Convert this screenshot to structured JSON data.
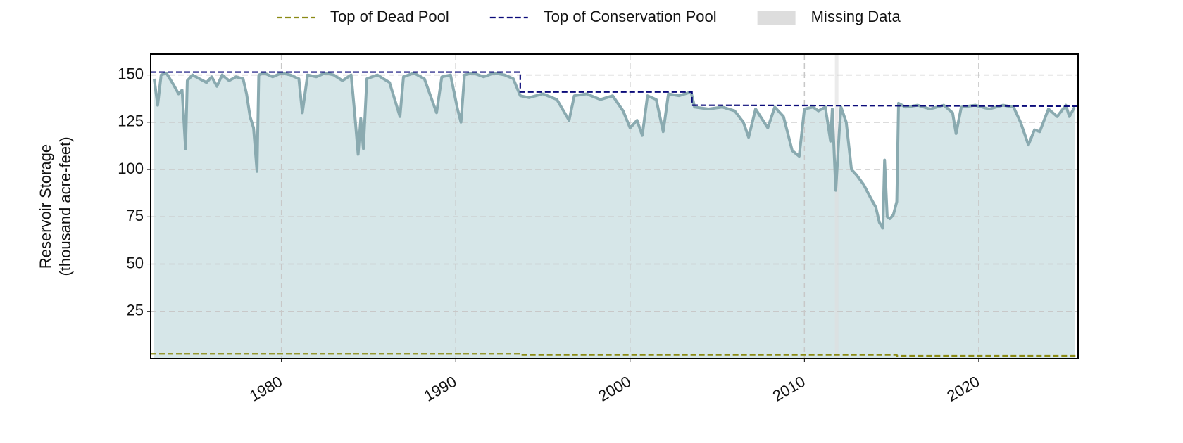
{
  "chart_data": {
    "type": "area-line",
    "y_label": [
      "Reservoir Storage",
      "(thousand acre-feet)"
    ],
    "xlim": [
      1972.5,
      2025.7
    ],
    "ylim": [
      0,
      161
    ],
    "xticks": [
      1980,
      1990,
      2000,
      2010,
      2020
    ],
    "yticks": [
      25,
      50,
      75,
      100,
      125,
      150
    ],
    "grid": true,
    "legend": "top",
    "storage": {
      "color": "#8aaab0",
      "fill": "#d6e6e8",
      "x": [
        1972.7,
        1972.9,
        1973.1,
        1973.4,
        1973.8,
        1974.1,
        1974.3,
        1974.5,
        1974.6,
        1974.9,
        1975.3,
        1975.7,
        1976.0,
        1976.3,
        1976.6,
        1977.0,
        1977.4,
        1977.8,
        1978.0,
        1978.2,
        1978.4,
        1978.6,
        1978.7,
        1979.0,
        1979.5,
        1980.0,
        1980.5,
        1981.0,
        1981.2,
        1981.5,
        1982.0,
        1982.5,
        1983.0,
        1983.5,
        1984.0,
        1984.2,
        1984.4,
        1984.55,
        1984.7,
        1984.9,
        1985.5,
        1986.2,
        1986.8,
        1987.0,
        1987.6,
        1988.2,
        1988.9,
        1989.2,
        1989.7,
        1990.1,
        1990.3,
        1990.5,
        1991.0,
        1991.6,
        1992.2,
        1992.8,
        1993.3,
        1993.7,
        1994.2,
        1995.0,
        1995.8,
        1996.5,
        1996.8,
        1997.5,
        1998.3,
        1999.0,
        1999.6,
        2000.0,
        2000.4,
        2000.7,
        2001.0,
        2001.5,
        2001.9,
        2002.2,
        2002.8,
        2003.5,
        2003.7,
        2004.5,
        2005.3,
        2006.0,
        2006.5,
        2006.8,
        2007.2,
        2007.9,
        2008.3,
        2008.8,
        2009.3,
        2009.7,
        2010.0,
        2010.5,
        2010.8,
        2011.2,
        2011.5,
        2011.6,
        2011.8,
        2012.0,
        2012.1,
        2012.4,
        2012.7,
        2013.0,
        2013.4,
        2013.8,
        2014.1,
        2014.3,
        2014.5,
        2014.6,
        2014.75,
        2014.9,
        2015.1,
        2015.3,
        2015.4,
        2015.8,
        2016.5,
        2017.2,
        2018.0,
        2018.5,
        2018.7,
        2019.0,
        2019.8,
        2020.6,
        2021.4,
        2022.0,
        2022.4,
        2022.85,
        2023.2,
        2023.5,
        2024.0,
        2024.5,
        2025.0,
        2025.2,
        2025.5
      ],
      "values": [
        148,
        134,
        150,
        151,
        145,
        140,
        142,
        111,
        147,
        150,
        148,
        146,
        149,
        144,
        150,
        147,
        149,
        148,
        140,
        128,
        122,
        99,
        150,
        151,
        149,
        151,
        150,
        148,
        130,
        150,
        149,
        151,
        150,
        147,
        150,
        130,
        108,
        127,
        111,
        148,
        150,
        146,
        128,
        149,
        151,
        148,
        130,
        149,
        150,
        132,
        125,
        150,
        151,
        149,
        151,
        150,
        148,
        139,
        138,
        140,
        137,
        126,
        139,
        140,
        137,
        139,
        131,
        122,
        126,
        118,
        139,
        137,
        120,
        140,
        139,
        141,
        133,
        132,
        133,
        131,
        125,
        117,
        132,
        122,
        133,
        128,
        110,
        107,
        132,
        133,
        131,
        133,
        115,
        132,
        89,
        120,
        133,
        125,
        100,
        97,
        92,
        85,
        80,
        72,
        69,
        105,
        75,
        74,
        76,
        83,
        135,
        133,
        134,
        132,
        134,
        130,
        119,
        133,
        134,
        132,
        134,
        133,
        125,
        113,
        121,
        120,
        132,
        128,
        134,
        128,
        133
      ]
    },
    "series": [
      {
        "name": "Top of Dead Pool",
        "color": "#8b8a14",
        "x": [
          1972.5,
          1993.7,
          1993.7,
          2015.3,
          2015.3,
          2025.7
        ],
        "values": [
          2.5,
          2.5,
          2,
          2,
          1.5,
          1.5
        ]
      },
      {
        "name": "Top of Conservation Pool",
        "color": "#0b0b7a",
        "x": [
          1972.5,
          1993.7,
          1993.7,
          2003.55,
          2003.55,
          2025.7
        ],
        "values": [
          151.5,
          151.5,
          141,
          141,
          134,
          133.5
        ]
      }
    ],
    "missing": {
      "name": "Missing Data",
      "color": "#dddddd",
      "ranges": [
        [
          2011.75,
          2011.95
        ]
      ]
    }
  }
}
